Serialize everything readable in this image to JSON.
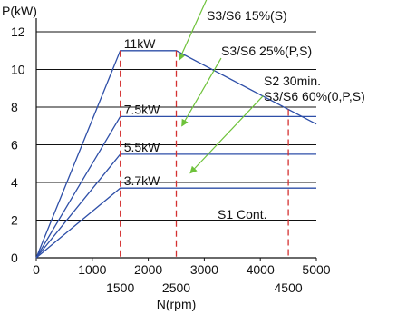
{
  "chart_data": {
    "type": "line",
    "ylabel": "P(kW)",
    "xlabel": "N(rpm)",
    "xlim": [
      0,
      5000
    ],
    "ylim": [
      0,
      12
    ],
    "x_ticks": [
      "0",
      "1000",
      "2000",
      "3000",
      "4000",
      "5000"
    ],
    "x_ticks_extra": [
      "1500",
      "2500",
      "4500"
    ],
    "y_ticks": [
      "0",
      "2",
      "4",
      "6",
      "8",
      "10",
      "12"
    ],
    "grid": "horizontal",
    "colors": {
      "curve": "#2e4fa8",
      "marker": "#d43030",
      "arrow": "#6ec23a",
      "axis": "#111111"
    },
    "series": [
      {
        "name": "S3/S6 15%(S)",
        "level_label": "11kW",
        "x": [
          0,
          1500,
          2500,
          5000
        ],
        "y": [
          0,
          11,
          11,
          7.1
        ]
      },
      {
        "name": "S2 30min. S3/S6 60%(0,P,S)",
        "level_label": "7.5kW",
        "x": [
          0,
          1500,
          4500,
          5000
        ],
        "y": [
          0,
          7.5,
          7.5,
          7.5
        ]
      },
      {
        "name": "S3/S6 25%(P,S)",
        "level_label": "5.5kW",
        "x": [
          0,
          1500,
          5000
        ],
        "y": [
          0,
          5.5,
          5.5
        ]
      },
      {
        "name": "S1 Cont.",
        "level_label": "3.7kW",
        "x": [
          0,
          1500,
          5000
        ],
        "y": [
          0,
          3.7,
          3.7
        ]
      }
    ],
    "reference_lines_x": [
      1500,
      2500,
      4500
    ],
    "annotations": [
      {
        "label": "S3/S6 15%(S)",
        "from": [
          3100,
          14.1
        ],
        "to": [
          2550,
          10.5
        ]
      },
      {
        "label": "S3/S6 25%(P,S)",
        "from": [
          3300,
          10.6
        ],
        "to": [
          2600,
          7.0
        ]
      },
      {
        "label": "S2 30min.",
        "from": null,
        "to": null
      },
      {
        "label": "S3/S6 60%(0,P,S)",
        "from": [
          4050,
          8.6
        ],
        "to": [
          2750,
          4.5
        ]
      }
    ]
  }
}
